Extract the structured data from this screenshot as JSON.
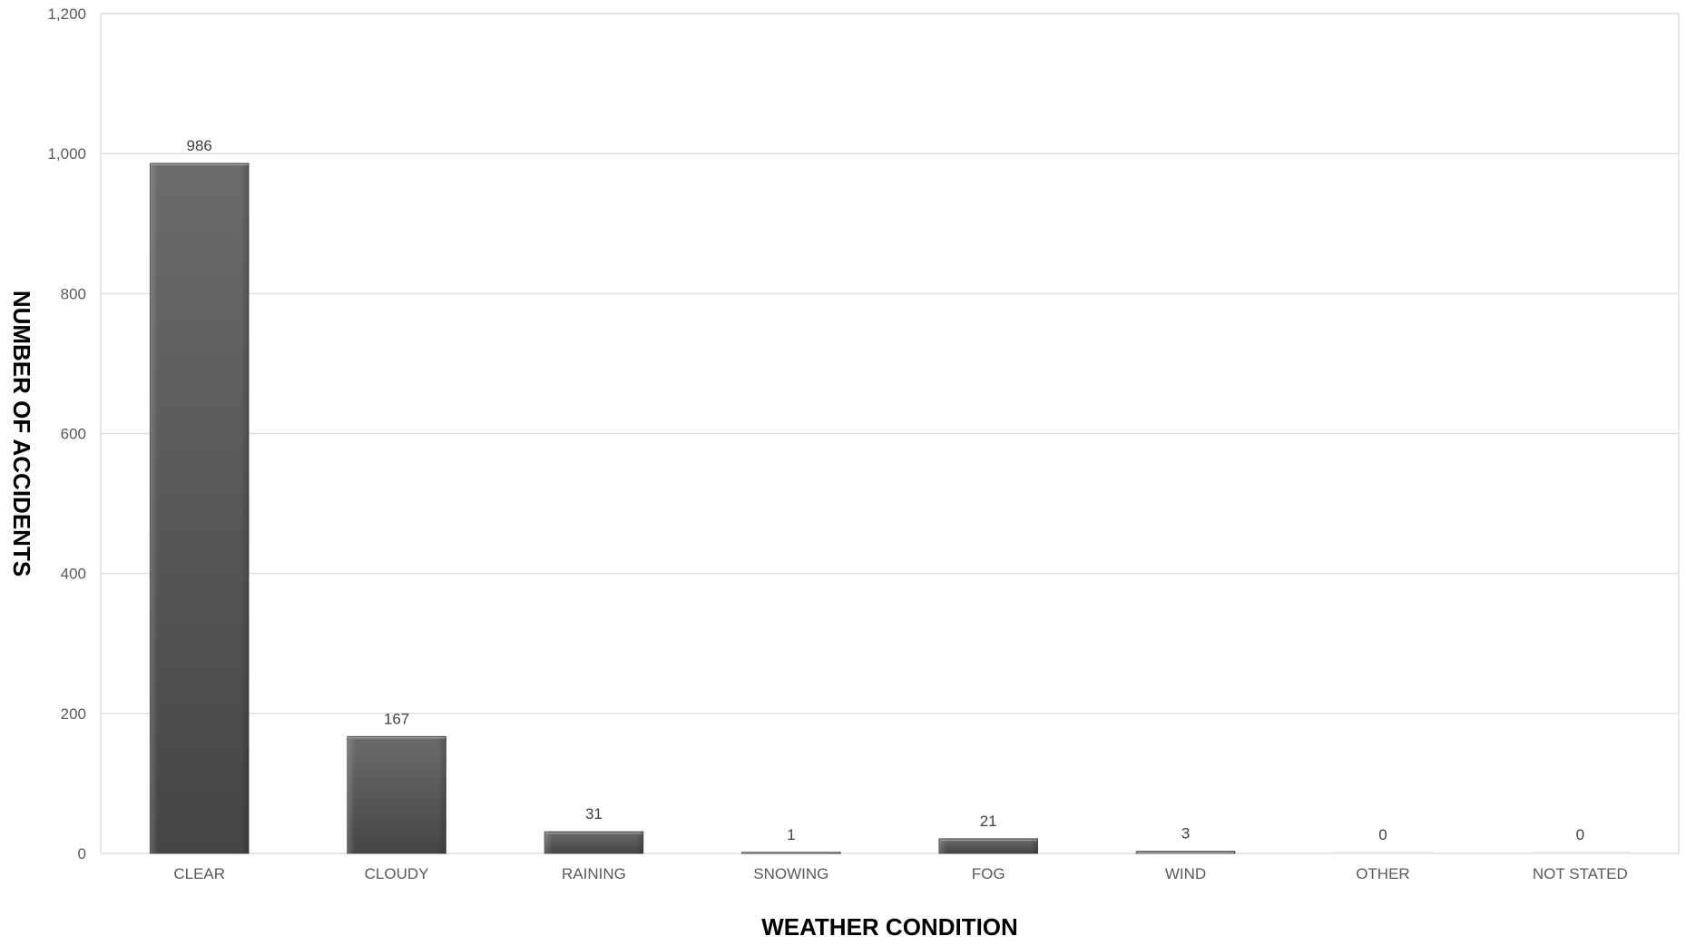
{
  "chart_data": {
    "type": "bar",
    "title": "",
    "xlabel": "WEATHER CONDITION",
    "ylabel": "NUMBER OF ACCIDENTS",
    "categories": [
      "CLEAR",
      "CLOUDY",
      "RAINING",
      "SNOWING",
      "FOG",
      "WIND",
      "OTHER",
      "NOT STATED"
    ],
    "values": [
      986,
      167,
      31,
      1,
      21,
      3,
      0,
      0
    ],
    "data_labels": [
      "986",
      "167",
      "31",
      "1",
      "21",
      "3",
      "0",
      "0"
    ],
    "ylim": [
      0,
      1200
    ],
    "y_ticks": [
      0,
      200,
      400,
      600,
      800,
      1000,
      1200
    ],
    "y_tick_labels": [
      "0",
      "200",
      "400",
      "600",
      "800",
      "1,000",
      "1,200"
    ],
    "grid": true,
    "legend": "none",
    "colors": {
      "bar_top": "#6b6b6b",
      "bar_bottom": "#454545",
      "grid": "#d9d9d9"
    }
  }
}
